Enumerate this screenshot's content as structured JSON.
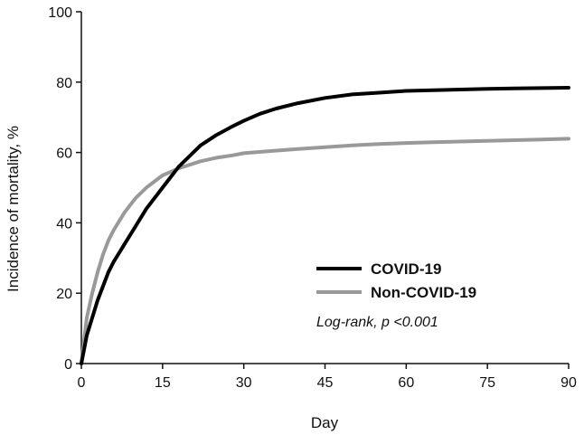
{
  "chart_data": {
    "type": "line",
    "title": "",
    "xlabel": "Day",
    "ylabel": "Incidence of mortality, %",
    "xlim": [
      0,
      90
    ],
    "ylim": [
      0,
      100
    ],
    "xticks": [
      0,
      15,
      30,
      45,
      60,
      75,
      90
    ],
    "yticks": [
      0,
      20,
      40,
      60,
      80,
      100
    ],
    "xtick_labels": [
      "0",
      "15",
      "30",
      "45",
      "60",
      "75",
      "90"
    ],
    "ytick_labels": [
      "0",
      "20",
      "40",
      "60",
      "80",
      "100"
    ],
    "grid": false,
    "legend_position": "lower-right",
    "annotation": "Log-rank, p <0.001",
    "series": [
      {
        "name": "COVID-19",
        "color": "#000000",
        "x": [
          0,
          1,
          2,
          3,
          4,
          5,
          6,
          8,
          10,
          12,
          15,
          18,
          20,
          22,
          25,
          28,
          30,
          33,
          36,
          40,
          45,
          50,
          55,
          60,
          65,
          70,
          75,
          80,
          85,
          90
        ],
        "y": [
          0,
          8,
          13,
          18,
          22,
          26,
          29,
          34,
          39,
          44,
          50,
          56,
          59,
          62,
          65,
          67.5,
          69,
          71,
          72.5,
          74,
          75.5,
          76.5,
          77,
          77.5,
          77.7,
          77.9,
          78.1,
          78.2,
          78.3,
          78.4
        ]
      },
      {
        "name": "Non-COVID-19",
        "color": "#999999",
        "x": [
          0,
          1,
          2,
          3,
          4,
          5,
          6,
          8,
          10,
          12,
          15,
          18,
          20,
          22,
          25,
          28,
          30,
          35,
          40,
          45,
          50,
          55,
          60,
          65,
          70,
          75,
          80,
          85,
          90
        ],
        "y": [
          0,
          13,
          20,
          26,
          31,
          35,
          38,
          43,
          47,
          50,
          53.5,
          55.5,
          56.5,
          57.5,
          58.5,
          59.2,
          59.8,
          60.4,
          61,
          61.5,
          62,
          62.4,
          62.7,
          62.9,
          63.1,
          63.3,
          63.5,
          63.7,
          63.9
        ]
      }
    ]
  }
}
